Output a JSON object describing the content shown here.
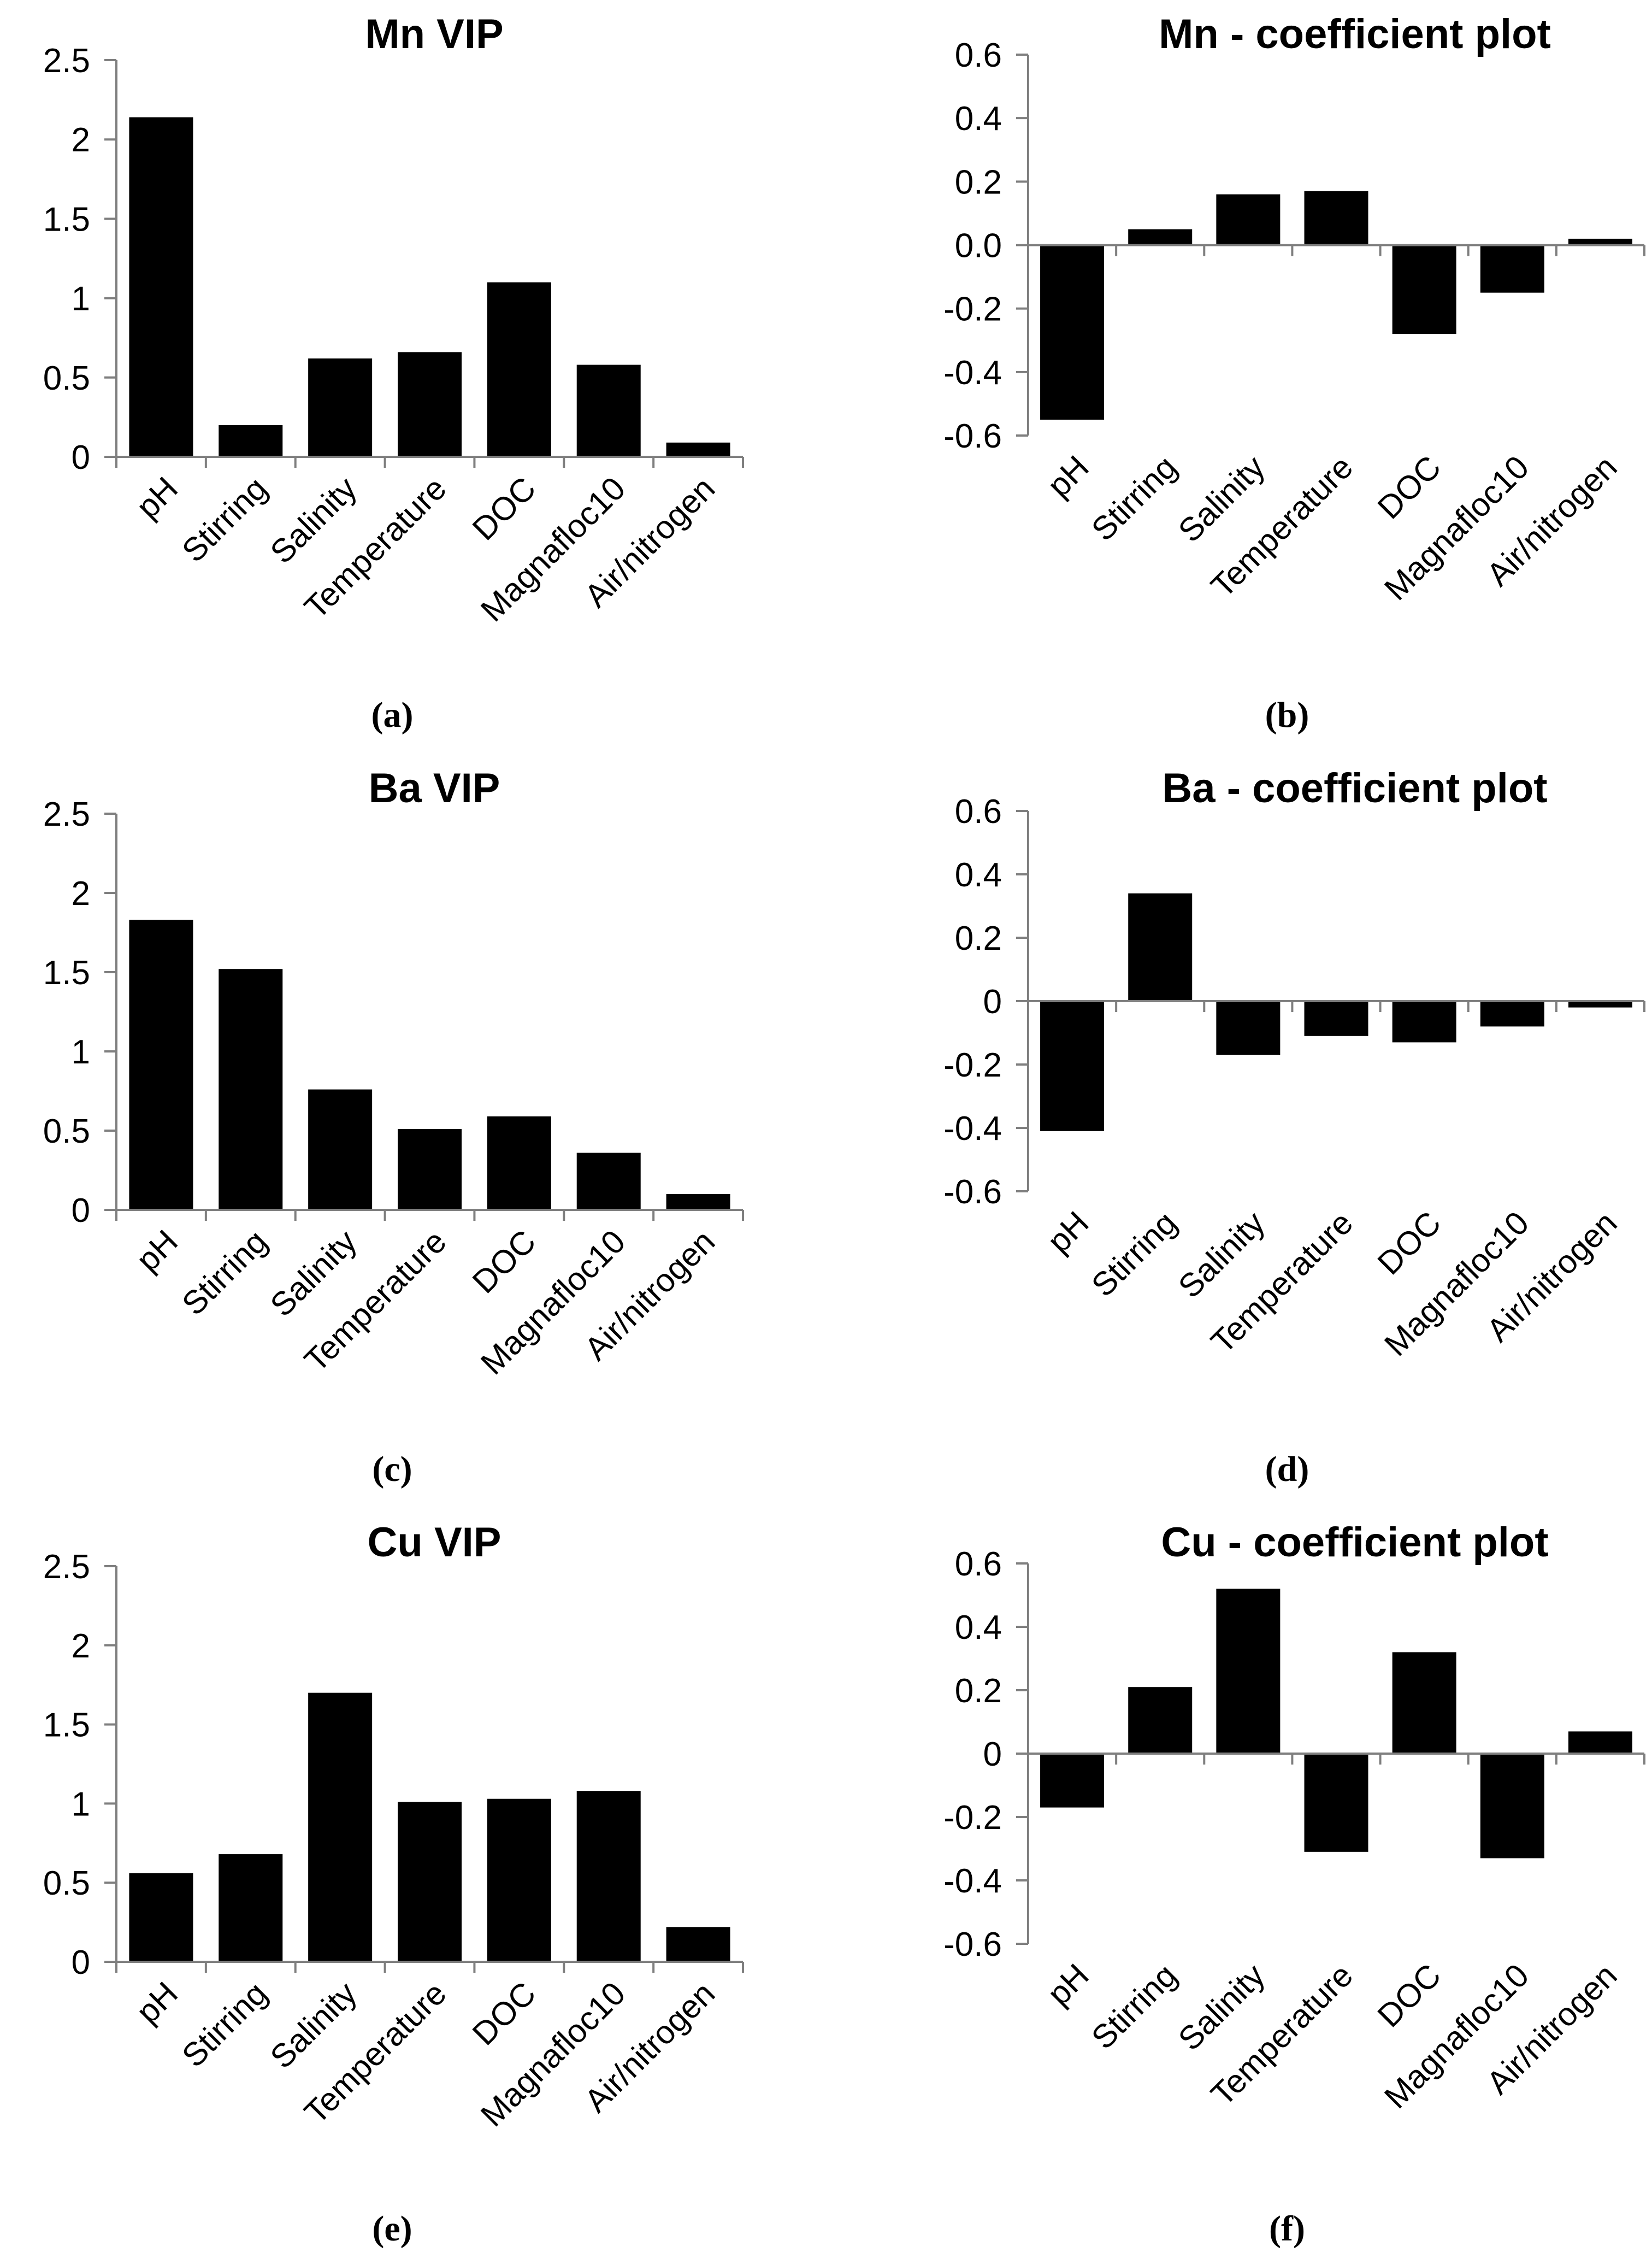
{
  "chart_data": [
    {
      "type": "bar",
      "title": "Mn VIP",
      "caption": "(a)",
      "categories": [
        "pH",
        "Stirring",
        "Salinity",
        "Temperature",
        "DOC",
        "Magnafloc10",
        "Air/nitrogen"
      ],
      "values": [
        2.14,
        0.2,
        0.62,
        0.66,
        1.1,
        0.58,
        0.09
      ],
      "ticks": [
        0,
        0.5,
        1,
        1.5,
        2,
        2.5
      ],
      "tick_labels": [
        "0",
        "0.5",
        "1",
        "1.5",
        "2",
        "2.5"
      ],
      "ylim": [
        0,
        2.5
      ],
      "xlabel": "",
      "ylabel": "",
      "grid": false,
      "legend": "none"
    },
    {
      "type": "bar",
      "title": "Mn - coefficient plot",
      "caption": "(b)",
      "categories": [
        "pH",
        "Stirring",
        "Salinity",
        "Temperature",
        "DOC",
        "Magnafloc10",
        "Air/nitrogen"
      ],
      "values": [
        -0.55,
        0.05,
        0.16,
        0.17,
        -0.28,
        -0.15,
        0.02
      ],
      "ticks": [
        -0.6,
        -0.4,
        -0.2,
        0.0,
        0.2,
        0.4,
        0.6
      ],
      "tick_labels": [
        "-0.6",
        "-0.4",
        "-0.2",
        "0.0",
        "0.2",
        "0.4",
        "0.6"
      ],
      "ylim": [
        -0.6,
        0.6
      ],
      "xlabel": "",
      "ylabel": "",
      "grid": false,
      "legend": "none"
    },
    {
      "type": "bar",
      "title": "Ba VIP",
      "caption": "(c)",
      "categories": [
        "pH",
        "Stirring",
        "Salinity",
        "Temperature",
        "DOC",
        "Magnafloc10",
        "Air/nitrogen"
      ],
      "values": [
        1.83,
        1.52,
        0.76,
        0.51,
        0.59,
        0.36,
        0.1
      ],
      "ticks": [
        0,
        0.5,
        1,
        1.5,
        2,
        2.5
      ],
      "tick_labels": [
        "0",
        "0.5",
        "1",
        "1.5",
        "2",
        "2.5"
      ],
      "ylim": [
        0,
        2.5
      ],
      "xlabel": "",
      "ylabel": "",
      "grid": false,
      "legend": "none"
    },
    {
      "type": "bar",
      "title": "Ba - coefficient plot",
      "caption": "(d)",
      "categories": [
        "pH",
        "Stirring",
        "Salinity",
        "Temperature",
        "DOC",
        "Magnafloc10",
        "Air/nitrogen"
      ],
      "values": [
        -0.41,
        0.34,
        -0.17,
        -0.11,
        -0.13,
        -0.08,
        -0.02
      ],
      "ticks": [
        -0.6,
        -0.4,
        -0.2,
        0,
        0.2,
        0.4,
        0.6
      ],
      "tick_labels": [
        "-0.6",
        "-0.4",
        "-0.2",
        "0",
        "0.2",
        "0.4",
        "0.6"
      ],
      "ylim": [
        -0.6,
        0.6
      ],
      "xlabel": "",
      "ylabel": "",
      "grid": false,
      "legend": "none"
    },
    {
      "type": "bar",
      "title": "Cu VIP",
      "caption": "(e)",
      "categories": [
        "pH",
        "Stirring",
        "Salinity",
        "Temperature",
        "DOC",
        "Magnafloc10",
        "Air/nitrogen"
      ],
      "values": [
        0.56,
        0.68,
        1.7,
        1.01,
        1.03,
        1.08,
        0.22
      ],
      "ticks": [
        0,
        0.5,
        1,
        1.5,
        2,
        2.5
      ],
      "tick_labels": [
        "0",
        "0.5",
        "1",
        "1.5",
        "2",
        "2.5"
      ],
      "ylim": [
        0,
        2.5
      ],
      "xlabel": "",
      "ylabel": "",
      "grid": false,
      "legend": "none"
    },
    {
      "type": "bar",
      "title": "Cu - coefficient plot",
      "caption": "(f)",
      "categories": [
        "pH",
        "Stirring",
        "Salinity",
        "Temperature",
        "DOC",
        "Magnafloc10",
        "Air/nitrogen"
      ],
      "values": [
        -0.17,
        0.21,
        0.52,
        -0.31,
        0.32,
        -0.33,
        0.07
      ],
      "ticks": [
        -0.6,
        -0.4,
        -0.2,
        0,
        0.2,
        0.4,
        0.6
      ],
      "tick_labels": [
        "-0.6",
        "-0.4",
        "-0.2",
        "0",
        "0.2",
        "0.4",
        "0.6"
      ],
      "ylim": [
        -0.6,
        0.6
      ],
      "xlabel": "",
      "ylabel": "",
      "grid": false,
      "legend": "none"
    }
  ],
  "colors": {
    "bar": "#000000",
    "axis": "#7f7f7f",
    "text": "#000000"
  }
}
